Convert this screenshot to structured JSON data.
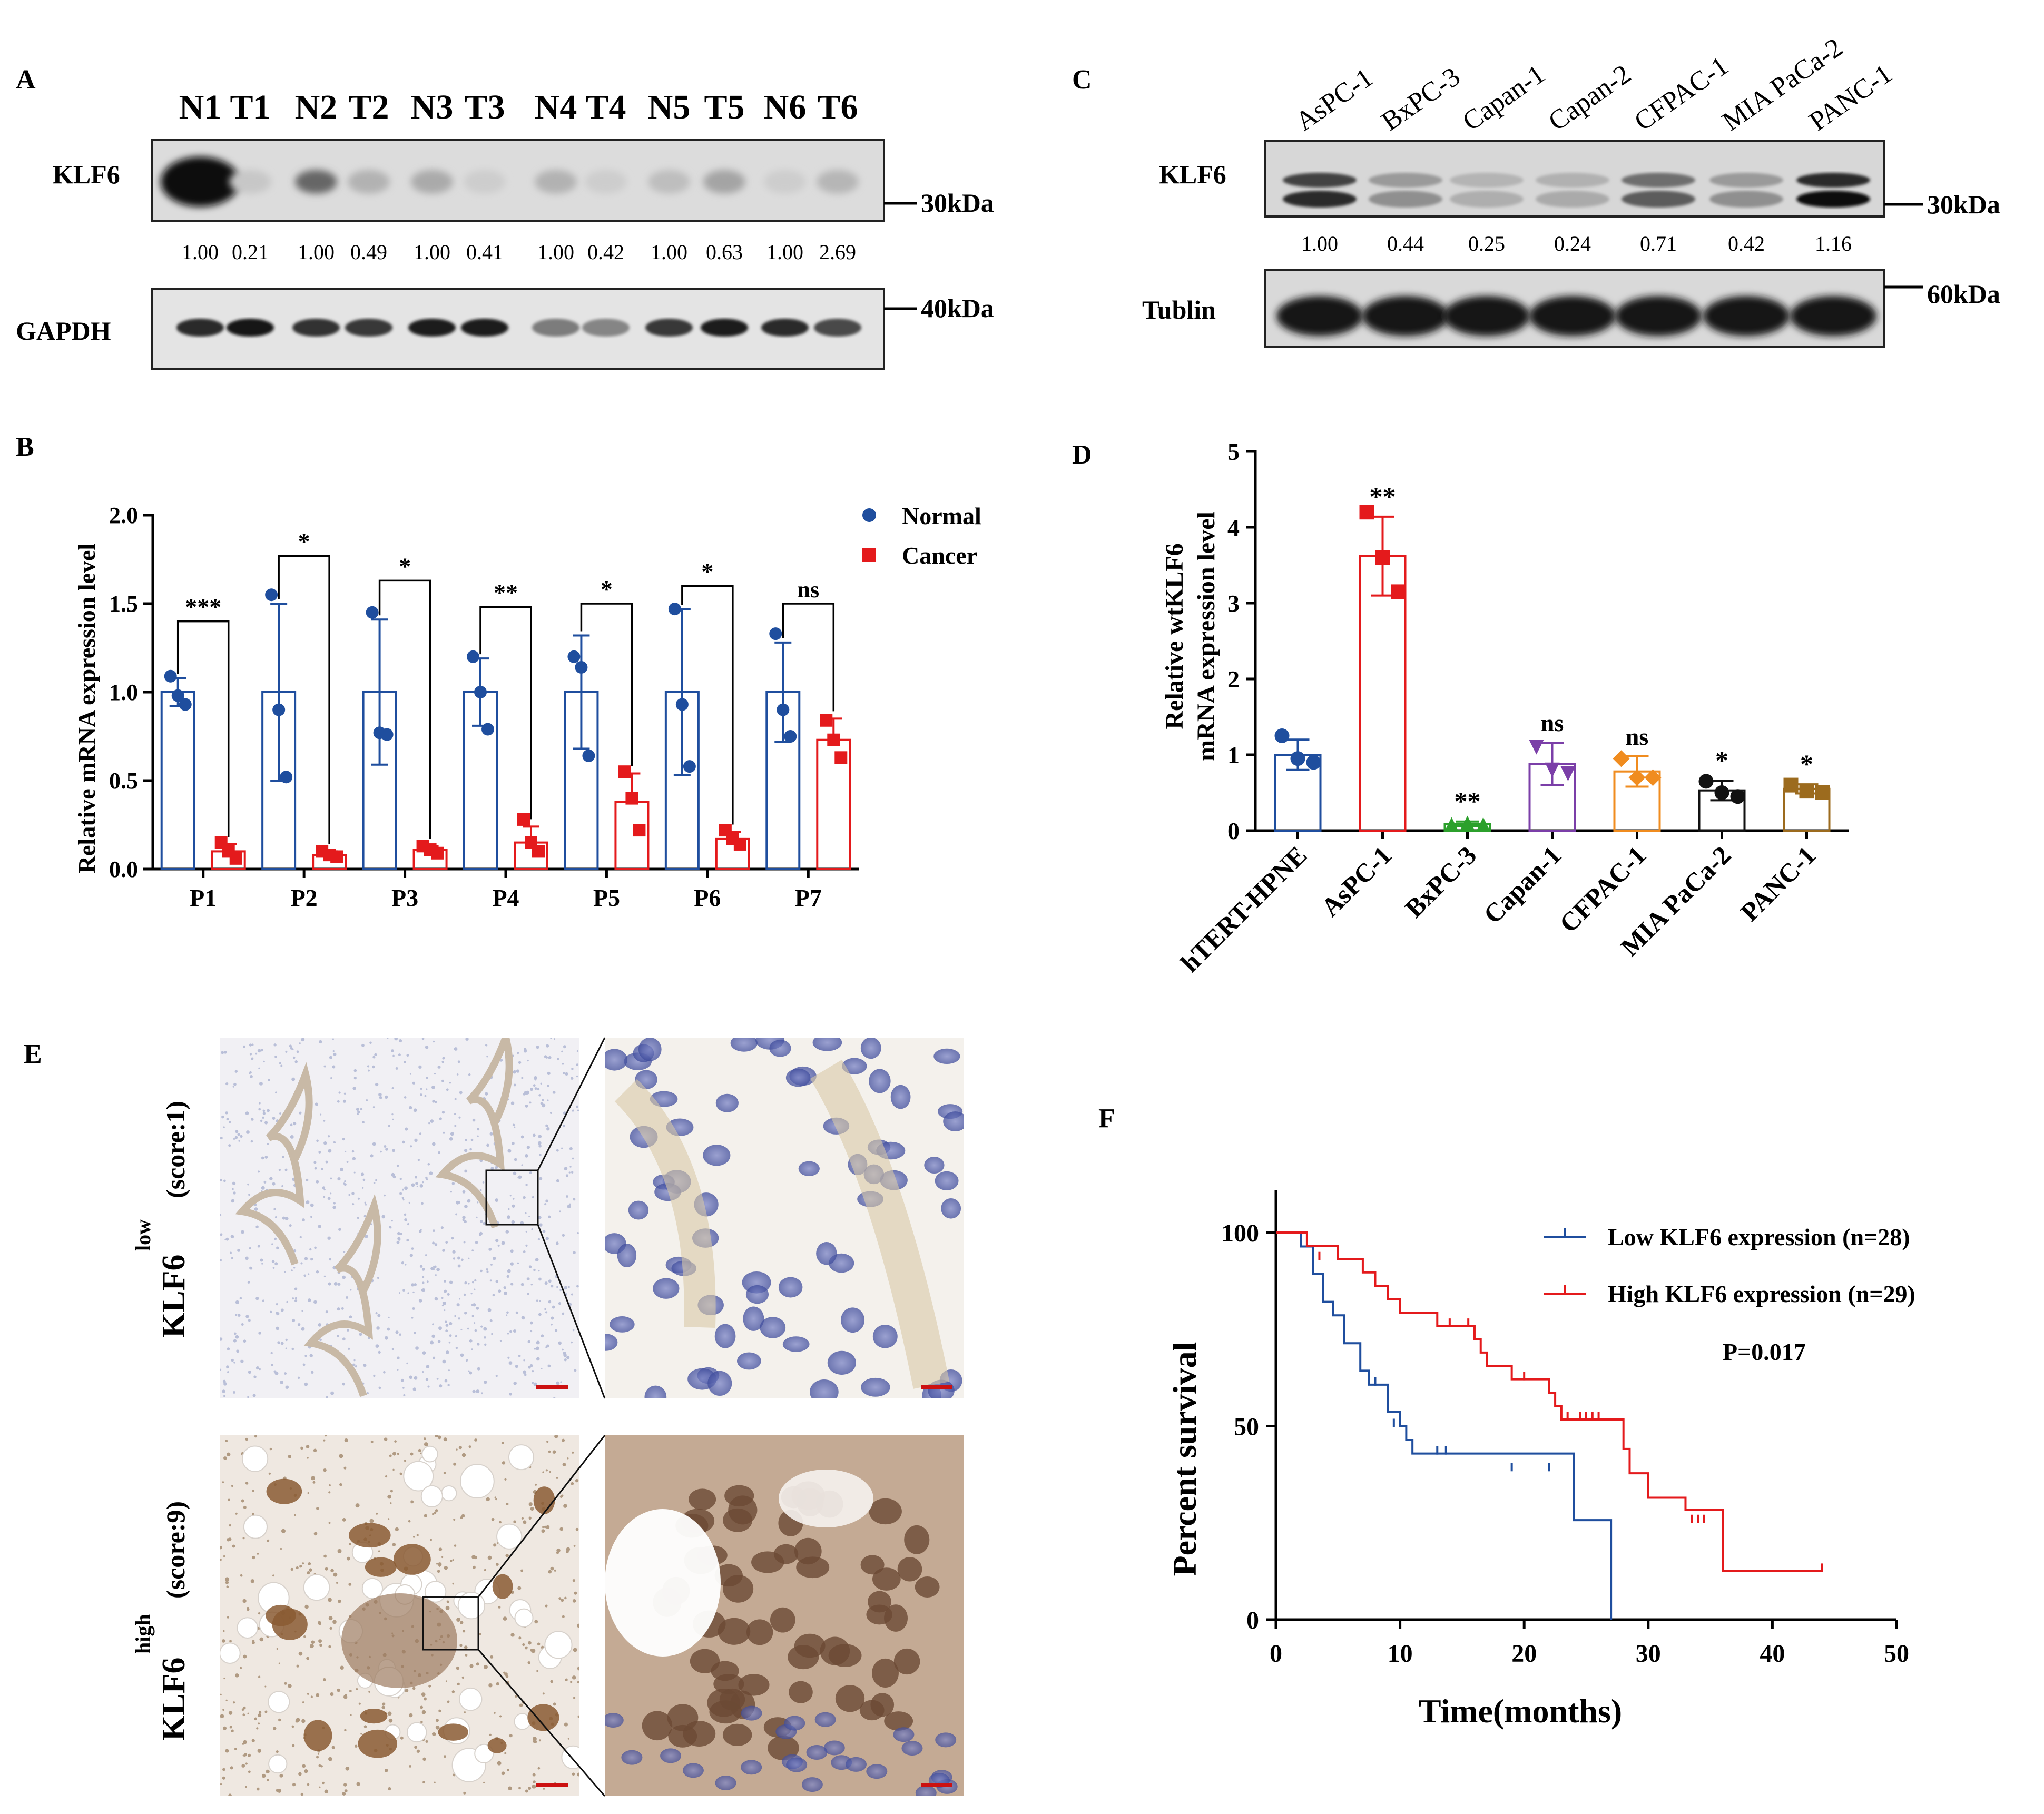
{
  "panel_labels": {
    "a": "A",
    "b": "B",
    "c": "C",
    "d": "D",
    "e": "E",
    "f": "F"
  },
  "panel_a": {
    "lanes": [
      "N1",
      "T1",
      "N2",
      "T2",
      "N3",
      "T3",
      "N4",
      "T4",
      "N5",
      "T5",
      "N6",
      "T6"
    ],
    "rows": {
      "klf6": "KLF6",
      "gapdh": "GAPDH"
    },
    "markers": {
      "klf6": "30kDa",
      "gapdh": "40kDa"
    },
    "quant": [
      "1.00",
      "0.21",
      "1.00",
      "0.49",
      "1.00",
      "0.41",
      "1.00",
      "0.42",
      "1.00",
      "0.63",
      "1.00",
      "2.69"
    ],
    "klf6_intensity": [
      1.0,
      0.08,
      0.55,
      0.18,
      0.22,
      0.05,
      0.18,
      0.05,
      0.12,
      0.25,
      0.05,
      0.16
    ],
    "gapdh_intensity": [
      0.85,
      0.95,
      0.8,
      0.78,
      0.9,
      0.9,
      0.45,
      0.4,
      0.78,
      0.9,
      0.85,
      0.7
    ]
  },
  "panel_c": {
    "lanes": [
      "AsPC-1",
      "BxPC-3",
      "Capan-1",
      "Capan-2",
      "CFPAC-1",
      "MIA PaCa-2",
      "PANC-1"
    ],
    "rows": {
      "klf6": "KLF6",
      "tublin": "Tublin"
    },
    "markers": {
      "klf6": "30kDa",
      "tublin": "60kDa"
    },
    "quant": [
      "1.00",
      "0.44",
      "0.25",
      "0.24",
      "0.71",
      "0.42",
      "1.16"
    ],
    "klf6_intensity": [
      0.85,
      0.35,
      0.2,
      0.22,
      0.6,
      0.35,
      1.0
    ],
    "tublin_intensity": [
      0.95,
      0.95,
      0.95,
      0.95,
      0.95,
      0.95,
      0.95
    ]
  },
  "chart_b": {
    "type": "bar",
    "ylabel": "Relative mRNA expression level",
    "ylim": [
      0,
      2.0
    ],
    "yticks": [
      "0.0",
      "0.5",
      "1.0",
      "1.5",
      "2.0"
    ],
    "categories": [
      "P1",
      "P2",
      "P3",
      "P4",
      "P5",
      "P6",
      "P7"
    ],
    "legend_position": "top-right",
    "series": [
      {
        "name": "Normal",
        "color": "#1f4e9e",
        "values": [
          1.0,
          1.0,
          1.0,
          1.0,
          1.0,
          1.0,
          1.0
        ],
        "sd": [
          0.08,
          0.5,
          0.41,
          0.19,
          0.32,
          0.47,
          0.28
        ],
        "points": [
          [
            1.09,
            0.98,
            0.93
          ],
          [
            1.55,
            0.9,
            0.52
          ],
          [
            1.45,
            0.77,
            0.76
          ],
          [
            1.2,
            1.0,
            0.79
          ],
          [
            1.2,
            1.14,
            0.64
          ],
          [
            1.47,
            0.93,
            0.58
          ],
          [
            1.33,
            0.9,
            0.75
          ]
        ]
      },
      {
        "name": "Cancer",
        "color": "#e41a1c",
        "values": [
          0.1,
          0.08,
          0.11,
          0.15,
          0.38,
          0.17,
          0.73
        ],
        "sd": [
          0.04,
          0.02,
          0.02,
          0.09,
          0.16,
          0.04,
          0.12
        ],
        "points": [
          [
            0.15,
            0.1,
            0.06
          ],
          [
            0.1,
            0.08,
            0.07
          ],
          [
            0.13,
            0.11,
            0.09
          ],
          [
            0.28,
            0.15,
            0.1
          ],
          [
            0.55,
            0.4,
            0.22
          ],
          [
            0.22,
            0.17,
            0.14
          ],
          [
            0.84,
            0.73,
            0.63
          ]
        ]
      }
    ],
    "significance": [
      "***",
      "*",
      "*",
      "**",
      "*",
      "*",
      "ns"
    ],
    "bracket_y": [
      1.4,
      1.77,
      1.63,
      1.48,
      1.5,
      1.6,
      1.5
    ]
  },
  "chart_d": {
    "type": "bar",
    "ylabel_line1": "Relative wtKLF6",
    "ylabel_line2": "mRNA expression level",
    "ylim": [
      0,
      5
    ],
    "yticks": [
      "0",
      "1",
      "2",
      "3",
      "4",
      "5"
    ],
    "categories": [
      "hTERT-HPNE",
      "AsPC-1",
      "BxPC-3",
      "Capan-1",
      "CFPAC-1",
      "MIA PaCa-2",
      "PANC-1"
    ],
    "values": [
      1.0,
      3.62,
      0.09,
      0.88,
      0.78,
      0.53,
      0.55
    ],
    "sd": [
      0.2,
      0.52,
      0.03,
      0.28,
      0.2,
      0.13,
      0.06
    ],
    "points": [
      [
        1.25,
        0.95,
        0.9
      ],
      [
        4.2,
        3.6,
        3.15
      ],
      [
        0.08,
        0.1,
        0.08
      ],
      [
        1.1,
        0.8,
        0.75
      ],
      [
        0.95,
        0.7,
        0.7
      ],
      [
        0.65,
        0.5,
        0.45
      ],
      [
        0.6,
        0.52,
        0.5
      ]
    ],
    "markers": [
      "circle",
      "square",
      "triangle-up",
      "triangle-down",
      "diamond",
      "circle",
      "square"
    ],
    "colors": [
      "#1f4e9e",
      "#e41a1c",
      "#2ca02c",
      "#7b3fa8",
      "#f08c1f",
      "#111111",
      "#9c6b1e"
    ],
    "labels": [
      "",
      "**",
      "**",
      "ns",
      "ns",
      "*",
      "*"
    ]
  },
  "panel_e": {
    "low_label": "KLF6",
    "low_sup": "low",
    "low_score": "(score:1)",
    "high_label": "KLF6",
    "high_sup": "high",
    "high_score": "(score:9)"
  },
  "chart_f": {
    "type": "line",
    "xlabel": "Time(months)",
    "ylabel": "Percent survival",
    "xlim": [
      0,
      50
    ],
    "ylim": [
      0,
      100
    ],
    "xticks": [
      "0",
      "10",
      "20",
      "30",
      "40",
      "50"
    ],
    "yticks": [
      "0",
      "50",
      "100"
    ],
    "p_value": "P=0.017",
    "legend_position": "top-right",
    "series": [
      {
        "name": "Low KLF6 expression (n=28)",
        "color": "#1f4e9e",
        "steps": [
          [
            0,
            100
          ],
          [
            2,
            96.4
          ],
          [
            3,
            89.3
          ],
          [
            3.8,
            82.1
          ],
          [
            4.6,
            78.6
          ],
          [
            5.5,
            71.4
          ],
          [
            6.8,
            64.3
          ],
          [
            7.5,
            60.7
          ],
          [
            9,
            53.6
          ],
          [
            10,
            50
          ],
          [
            10.5,
            46.4
          ],
          [
            11,
            42.9
          ],
          [
            24,
            25.7
          ],
          [
            27,
            0
          ]
        ],
        "censors": [
          [
            8,
            60.7
          ],
          [
            9.5,
            50
          ],
          [
            13,
            42.9
          ],
          [
            13.7,
            42.9
          ],
          [
            19,
            38.6
          ],
          [
            22,
            38.6
          ]
        ]
      },
      {
        "name": "High KLF6 expression (n=29)",
        "color": "#e41a1c",
        "steps": [
          [
            0,
            100
          ],
          [
            2.5,
            96.6
          ],
          [
            5,
            93.1
          ],
          [
            7,
            89.7
          ],
          [
            8,
            86.2
          ],
          [
            9,
            82.8
          ],
          [
            10,
            79.3
          ],
          [
            13,
            75.9
          ],
          [
            16,
            72.4
          ],
          [
            16.5,
            69
          ],
          [
            17,
            65.5
          ],
          [
            19,
            62.1
          ],
          [
            22,
            58.6
          ],
          [
            22.5,
            55.2
          ],
          [
            23,
            51.7
          ],
          [
            28,
            44.1
          ],
          [
            28.5,
            37.8
          ],
          [
            30,
            31.5
          ],
          [
            33,
            28.4
          ],
          [
            36,
            12.6
          ],
          [
            44,
            12.6
          ]
        ],
        "censors": [
          [
            3.5,
            93.1
          ],
          [
            14,
            75.9
          ],
          [
            15.5,
            75.9
          ],
          [
            20,
            62.1
          ],
          [
            23.5,
            51.7
          ],
          [
            24.5,
            51.7
          ],
          [
            25,
            51.7
          ],
          [
            25.5,
            51.7
          ],
          [
            26,
            51.7
          ],
          [
            33.5,
            25.2
          ],
          [
            34,
            25.2
          ],
          [
            34.5,
            25.2
          ],
          [
            44,
            12.6
          ]
        ]
      }
    ]
  }
}
